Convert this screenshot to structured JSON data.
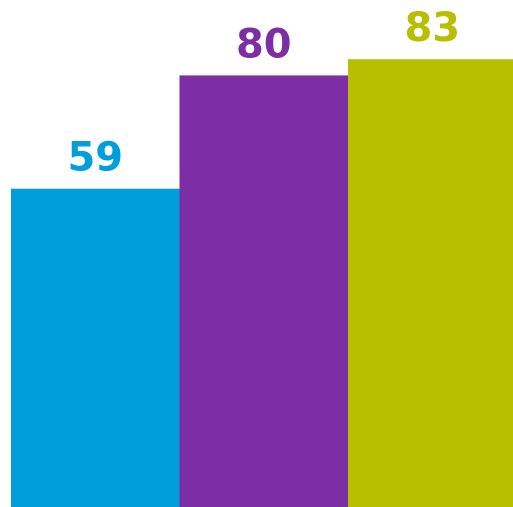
{
  "chart_data": {
    "type": "bar",
    "categories": [
      "",
      "",
      ""
    ],
    "values": [
      59,
      80,
      83
    ],
    "colors": [
      "#009fdb",
      "#7d2ea5",
      "#b7bf00"
    ],
    "data_labels": [
      "59",
      "80",
      "83"
    ],
    "title": "",
    "xlabel": "",
    "ylabel": "",
    "ylim": [
      0,
      100
    ],
    "grid": false,
    "legend": "none"
  }
}
